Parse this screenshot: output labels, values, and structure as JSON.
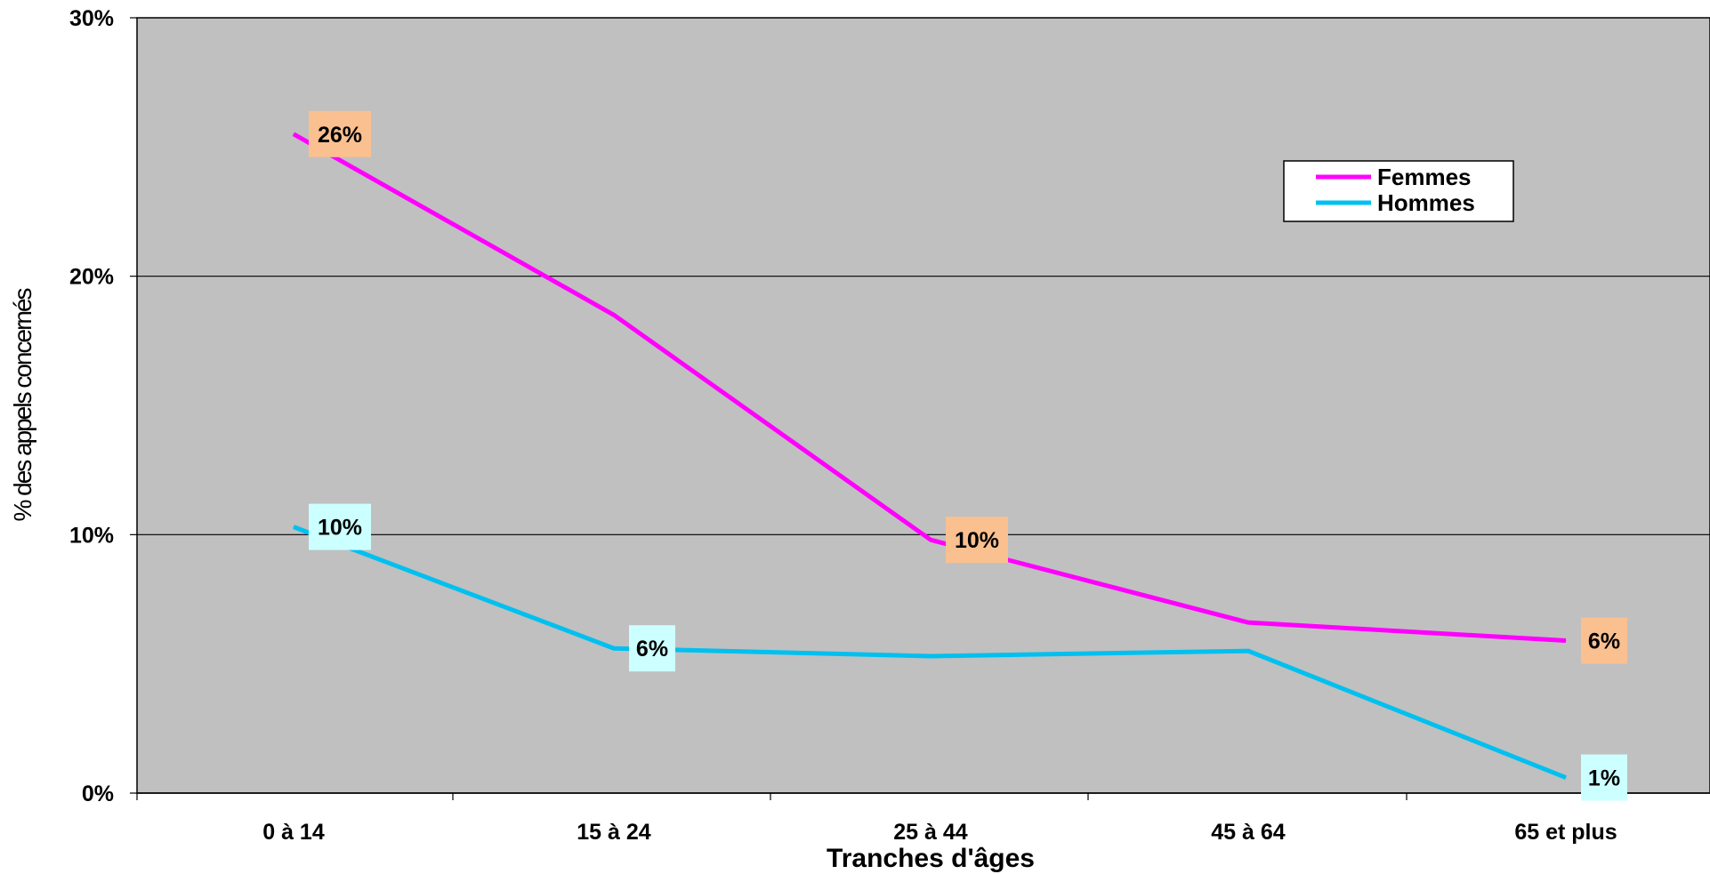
{
  "chart_data": {
    "type": "line",
    "categories": [
      "0 à 14",
      "15 à 24",
      "25 à 44",
      "45 à 64",
      "65 et plus"
    ],
    "series": [
      {
        "name": "Femmes",
        "color": "#ff00ff",
        "label_bg": "#fac090",
        "values": [
          25.5,
          18.5,
          9.8,
          6.6,
          5.9
        ],
        "labels": [
          "26%",
          "",
          "10%",
          "",
          "6%"
        ]
      },
      {
        "name": "Hommes",
        "color": "#00c0f0",
        "label_bg": "#ccffff",
        "values": [
          10.3,
          5.6,
          5.3,
          5.5,
          0.6
        ],
        "labels": [
          "10%",
          "6%",
          "",
          "",
          "1%"
        ]
      }
    ],
    "y_ticks": [
      "0%",
      "10%",
      "20%",
      "30%"
    ],
    "y_tick_values": [
      0,
      10,
      20,
      30
    ],
    "ylim": [
      0,
      30
    ],
    "xlabel": "Tranches d'âges",
    "ylabel": "% des appels concernés",
    "title": "",
    "grid": true,
    "legend_position": "top-right",
    "plot_background": "#c0c0c0"
  }
}
